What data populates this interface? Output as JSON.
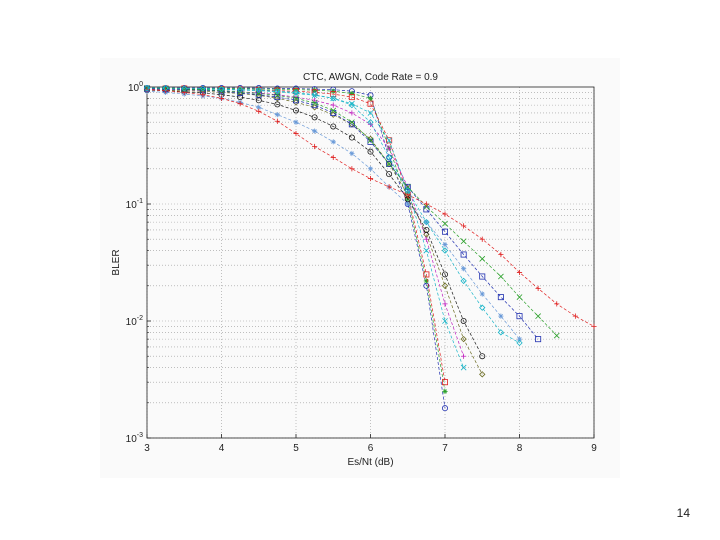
{
  "slide": {
    "page_number": "14"
  },
  "chart_data": {
    "type": "line",
    "title": "CTC, AWGN, Code Rate = 0.9",
    "xlabel": "Es/Nt (dB)",
    "ylabel": "BLER",
    "xlim": [
      3,
      9
    ],
    "ylim": [
      0.001,
      1
    ],
    "yscale": "log",
    "grid": true,
    "x_ticks": [
      "3",
      "4",
      "5",
      "6",
      "7",
      "8",
      "9"
    ],
    "y_ticks": [
      {
        "base": "10",
        "exp": "0",
        "value": 1
      },
      {
        "base": "10",
        "exp": "-1",
        "value": 0.1
      },
      {
        "base": "10",
        "exp": "-2",
        "value": 0.01
      },
      {
        "base": "10",
        "exp": "-3",
        "value": 0.001
      }
    ],
    "colors": [
      "#1f2fb0",
      "#2aa02a",
      "#e02020",
      "#19b5c8",
      "#c020c0",
      "#6a6a20",
      "#1a1a1a",
      "#6a9ad8"
    ],
    "markers": [
      "circle",
      "star",
      "square",
      "x",
      "plus",
      "diamond"
    ],
    "series": [
      {
        "x": [
          3,
          3.25,
          3.5,
          3.75,
          4,
          4.25,
          4.5,
          4.75,
          5,
          5.25,
          5.5,
          5.75,
          6,
          6.25,
          6.5,
          6.75,
          7
        ],
        "y": [
          0.98,
          0.98,
          0.98,
          0.98,
          0.98,
          0.98,
          0.98,
          0.97,
          0.97,
          0.96,
          0.95,
          0.92,
          0.85,
          0.25,
          0.1,
          0.02,
          0.0018
        ]
      },
      {
        "x": [
          3,
          3.25,
          3.5,
          3.75,
          4,
          4.25,
          4.5,
          4.75,
          5,
          5.25,
          5.5,
          5.75,
          6,
          6.25,
          6.5,
          6.75,
          7
        ],
        "y": [
          0.98,
          0.98,
          0.97,
          0.97,
          0.97,
          0.97,
          0.96,
          0.96,
          0.95,
          0.94,
          0.92,
          0.88,
          0.8,
          0.3,
          0.11,
          0.022,
          0.0025
        ]
      },
      {
        "x": [
          3,
          3.25,
          3.5,
          3.75,
          4,
          4.25,
          4.5,
          4.75,
          5,
          5.25,
          5.5,
          5.75,
          6,
          6.25,
          6.5,
          6.75,
          7
        ],
        "y": [
          0.97,
          0.97,
          0.97,
          0.96,
          0.96,
          0.95,
          0.94,
          0.93,
          0.92,
          0.9,
          0.87,
          0.82,
          0.72,
          0.35,
          0.12,
          0.025,
          0.003
        ]
      },
      {
        "x": [
          3,
          3.25,
          3.5,
          3.75,
          4,
          4.25,
          4.5,
          4.75,
          5,
          5.25,
          5.5,
          5.75,
          6,
          6.25,
          6.5,
          6.75,
          7,
          7.25
        ],
        "y": [
          0.97,
          0.97,
          0.96,
          0.96,
          0.95,
          0.94,
          0.93,
          0.91,
          0.88,
          0.85,
          0.8,
          0.72,
          0.6,
          0.35,
          0.13,
          0.04,
          0.01,
          0.004
        ]
      },
      {
        "x": [
          3,
          3.25,
          3.5,
          3.75,
          4,
          4.25,
          4.5,
          4.75,
          5,
          5.25,
          5.5,
          5.75,
          6,
          6.25,
          6.5,
          6.75,
          7,
          7.25
        ],
        "y": [
          0.96,
          0.96,
          0.95,
          0.94,
          0.93,
          0.91,
          0.89,
          0.86,
          0.82,
          0.77,
          0.7,
          0.6,
          0.48,
          0.3,
          0.14,
          0.05,
          0.014,
          0.005
        ]
      },
      {
        "x": [
          3,
          3.25,
          3.5,
          3.75,
          4,
          4.25,
          4.5,
          4.75,
          5,
          5.25,
          5.5,
          5.75,
          6,
          6.25,
          6.5,
          6.75,
          7,
          7.25,
          7.5
        ],
        "y": [
          0.95,
          0.94,
          0.93,
          0.92,
          0.9,
          0.88,
          0.85,
          0.8,
          0.74,
          0.67,
          0.58,
          0.48,
          0.36,
          0.22,
          0.12,
          0.055,
          0.02,
          0.007,
          0.0035
        ]
      },
      {
        "x": [
          3,
          3.25,
          3.5,
          3.75,
          4,
          4.25,
          4.5,
          4.75,
          5,
          5.25,
          5.5,
          5.75,
          6,
          6.25,
          6.5,
          6.75,
          7,
          7.25,
          7.5
        ],
        "y": [
          0.94,
          0.93,
          0.91,
          0.89,
          0.86,
          0.82,
          0.77,
          0.71,
          0.63,
          0.55,
          0.46,
          0.37,
          0.28,
          0.18,
          0.11,
          0.06,
          0.025,
          0.01,
          0.005
        ]
      },
      {
        "x": [
          3,
          3.25,
          3.5,
          3.75,
          4,
          4.25,
          4.5,
          4.75,
          5,
          5.25,
          5.5,
          5.75,
          6,
          6.25,
          6.5,
          6.75,
          7,
          7.25,
          7.5,
          7.75,
          8
        ],
        "y": [
          0.92,
          0.9,
          0.87,
          0.84,
          0.8,
          0.74,
          0.67,
          0.58,
          0.5,
          0.42,
          0.34,
          0.27,
          0.2,
          0.14,
          0.1,
          0.07,
          0.045,
          0.028,
          0.017,
          0.011,
          0.007
        ]
      },
      {
        "x": [
          3,
          3.25,
          3.5,
          3.75,
          4,
          4.25,
          4.5,
          4.75,
          5,
          5.25,
          5.5,
          5.75,
          6,
          6.25,
          6.5,
          6.75,
          7,
          7.25,
          7.5,
          7.75,
          8,
          8.25
        ],
        "y": [
          0.97,
          0.96,
          0.95,
          0.94,
          0.92,
          0.89,
          0.86,
          0.82,
          0.77,
          0.7,
          0.6,
          0.48,
          0.34,
          0.22,
          0.14,
          0.09,
          0.058,
          0.037,
          0.024,
          0.016,
          0.011,
          0.007
        ]
      },
      {
        "x": [
          3,
          3.25,
          3.5,
          3.75,
          4,
          4.25,
          4.5,
          4.75,
          5,
          5.25,
          5.5,
          5.75,
          6,
          6.25,
          6.5,
          6.75,
          7,
          7.25,
          7.5,
          7.75,
          8,
          8.25,
          8.5
        ],
        "y": [
          0.98,
          0.97,
          0.96,
          0.95,
          0.93,
          0.91,
          0.88,
          0.85,
          0.8,
          0.73,
          0.63,
          0.5,
          0.35,
          0.22,
          0.14,
          0.095,
          0.068,
          0.048,
          0.034,
          0.024,
          0.016,
          0.011,
          0.0075
        ]
      },
      {
        "x": [
          3,
          3.25,
          3.5,
          3.75,
          4,
          4.25,
          4.5,
          4.75,
          5,
          5.25,
          5.5,
          5.75,
          6,
          6.25,
          6.5,
          6.75,
          7,
          7.25,
          7.5,
          7.75,
          8,
          8.25,
          8.5,
          8.75,
          9
        ],
        "y": [
          0.95,
          0.93,
          0.9,
          0.86,
          0.8,
          0.72,
          0.62,
          0.51,
          0.4,
          0.31,
          0.25,
          0.2,
          0.165,
          0.14,
          0.12,
          0.1,
          0.082,
          0.065,
          0.05,
          0.037,
          0.026,
          0.019,
          0.014,
          0.011,
          0.009
        ]
      },
      {
        "x": [
          3,
          3.25,
          3.5,
          3.75,
          4,
          4.25,
          4.5,
          4.75,
          5,
          5.25,
          5.5,
          5.75,
          6,
          6.25,
          6.5,
          6.75,
          7,
          7.25,
          7.5,
          7.75,
          8
        ],
        "y": [
          0.98,
          0.98,
          0.97,
          0.97,
          0.96,
          0.95,
          0.94,
          0.92,
          0.9,
          0.86,
          0.8,
          0.7,
          0.5,
          0.25,
          0.13,
          0.07,
          0.04,
          0.022,
          0.013,
          0.008,
          0.0065
        ]
      }
    ]
  }
}
